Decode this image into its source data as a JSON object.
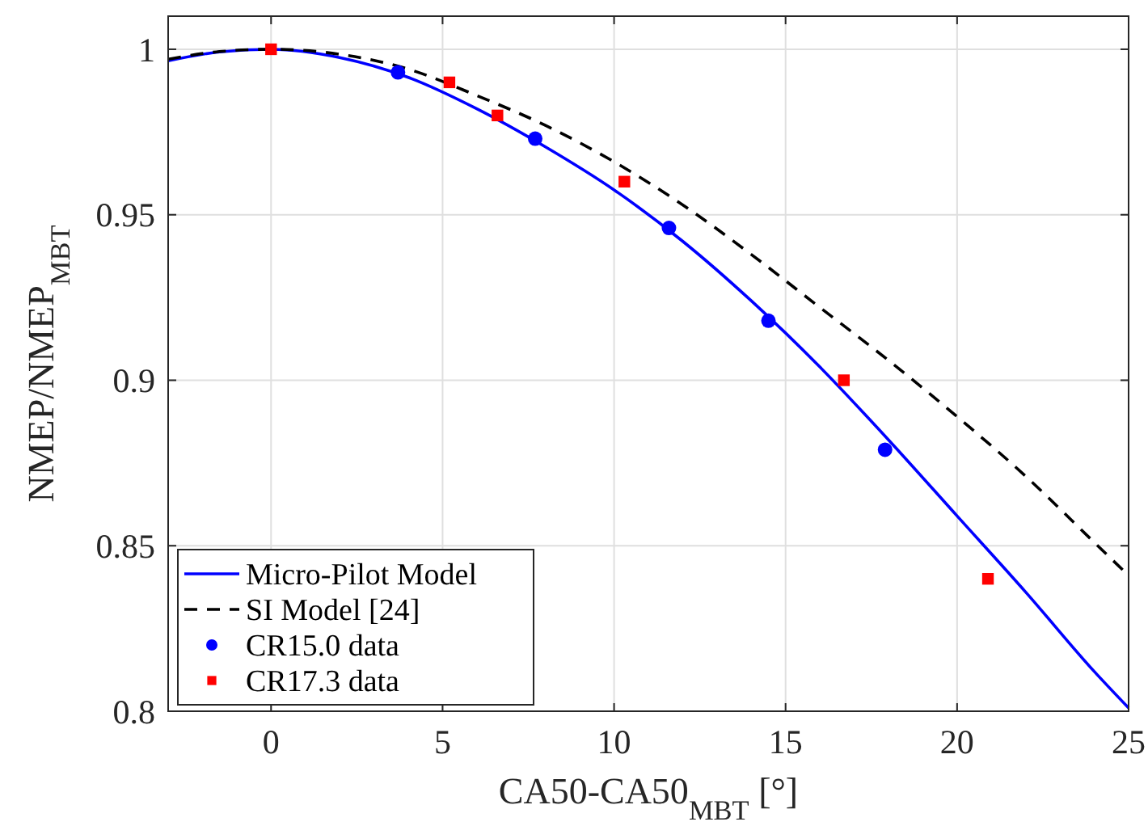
{
  "chart_data": {
    "type": "line",
    "xlabel": "CA50-CA50$_{MBT}$ [°]",
    "ylabel": "NMEP/NMEP$_{MBT}$",
    "xlim": [
      -3,
      25
    ],
    "xticks": [
      0,
      5,
      10,
      15,
      20,
      25
    ],
    "ylim": [
      0.8,
      1.01
    ],
    "yticks": [
      0.8,
      0.85,
      0.9,
      0.95,
      1
    ],
    "grid": true,
    "legend": "bottom left",
    "series": [
      {
        "name": "Micro-Pilot Model",
        "color": "#0000ff",
        "line_style": "solid",
        "marker": "none",
        "x": [
          -3,
          -1.5,
          0,
          2,
          4,
          6,
          8,
          10,
          12,
          14,
          16,
          18,
          20,
          22,
          24,
          25
        ],
        "values": [
          0.9965,
          0.9992,
          1,
          0.9975,
          0.9915,
          0.982,
          0.9705,
          0.9575,
          0.942,
          0.924,
          0.904,
          0.882,
          0.859,
          0.836,
          0.812,
          0.801
        ]
      },
      {
        "name": "SI Model [24]",
        "color": "#000000",
        "line_style": "dashed",
        "marker": "none",
        "x": [
          -3,
          -1.5,
          0,
          2,
          4,
          6,
          8,
          10,
          12,
          14,
          16,
          18,
          20,
          22,
          24,
          25
        ],
        "values": [
          0.997,
          0.9993,
          1,
          0.9985,
          0.994,
          0.986,
          0.977,
          0.966,
          0.953,
          0.938,
          0.922,
          0.906,
          0.889,
          0.871,
          0.851,
          0.841
        ]
      },
      {
        "name": "CR15.0 data",
        "type": "scatter",
        "color": "#0000ff",
        "marker": "circle",
        "x": [
          3.7,
          7.7,
          11.6,
          14.5,
          17.9
        ],
        "values": [
          0.993,
          0.973,
          0.946,
          0.918,
          0.879
        ]
      },
      {
        "name": "CR17.3 data",
        "type": "scatter",
        "color": "#ff0000",
        "marker": "square",
        "x": [
          0,
          5.2,
          6.6,
          10.3,
          16.7,
          20.9
        ],
        "values": [
          1,
          0.99,
          0.98,
          0.96,
          0.9,
          0.84
        ]
      }
    ]
  }
}
